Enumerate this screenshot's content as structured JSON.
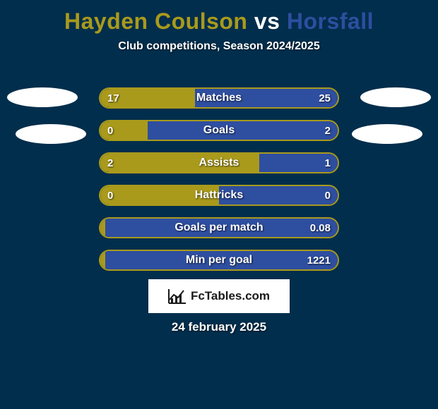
{
  "title": {
    "player_left": "Hayden Coulson",
    "vs": " vs ",
    "player_right": "Horsfall"
  },
  "subtitle": "Club competitions, Season 2024/2025",
  "colors": {
    "background": "#012e4c",
    "player_left": "#a99a1c",
    "player_right": "#2e4ea0",
    "avatar": "#ffffff",
    "text": "#ffffff",
    "badge_bg": "#ffffff",
    "badge_text": "#1a1a1a"
  },
  "bars": [
    {
      "label": "Matches",
      "left_val": "17",
      "right_val": "25",
      "left_pct": 40,
      "right_pct": 60
    },
    {
      "label": "Goals",
      "left_val": "0",
      "right_val": "2",
      "left_pct": 20,
      "right_pct": 80
    },
    {
      "label": "Assists",
      "left_val": "2",
      "right_val": "1",
      "left_pct": 67,
      "right_pct": 33
    },
    {
      "label": "Hattricks",
      "left_val": "0",
      "right_val": "0",
      "left_pct": 50,
      "right_pct": 50
    },
    {
      "label": "Goals per match",
      "left_val": "",
      "right_val": "0.08",
      "left_pct": 2,
      "right_pct": 98
    },
    {
      "label": "Min per goal",
      "left_val": "",
      "right_val": "1221",
      "left_pct": 2,
      "right_pct": 98
    }
  ],
  "bar_style": {
    "height": 30,
    "border_radius": 15,
    "row_gap": 16,
    "label_fontsize": 16,
    "value_fontsize": 15
  },
  "brand": "FcTables.com",
  "date": "24 february 2025"
}
